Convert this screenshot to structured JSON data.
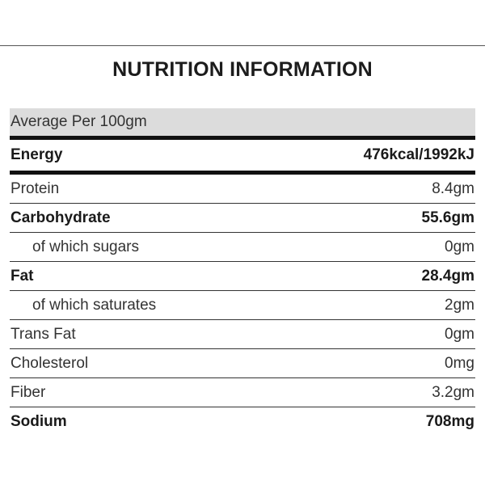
{
  "title": "NUTRITION INFORMATION",
  "header": "Average Per 100gm",
  "rows": [
    {
      "label": "Energy",
      "value": "476kcal/1992kJ"
    },
    {
      "label": "Protein",
      "value": "8.4gm"
    },
    {
      "label": "Carbohydrate",
      "value": "55.6gm"
    },
    {
      "label": "of which sugars",
      "value": "0gm"
    },
    {
      "label": "Fat",
      "value": "28.4gm"
    },
    {
      "label": "of which saturates",
      "value": "2gm"
    },
    {
      "label": "Trans Fat",
      "value": "0gm"
    },
    {
      "label": "Cholesterol",
      "value": "0mg"
    },
    {
      "label": "Fiber",
      "value": "3.2gm"
    },
    {
      "label": "Sodium",
      "value": "708mg"
    }
  ]
}
